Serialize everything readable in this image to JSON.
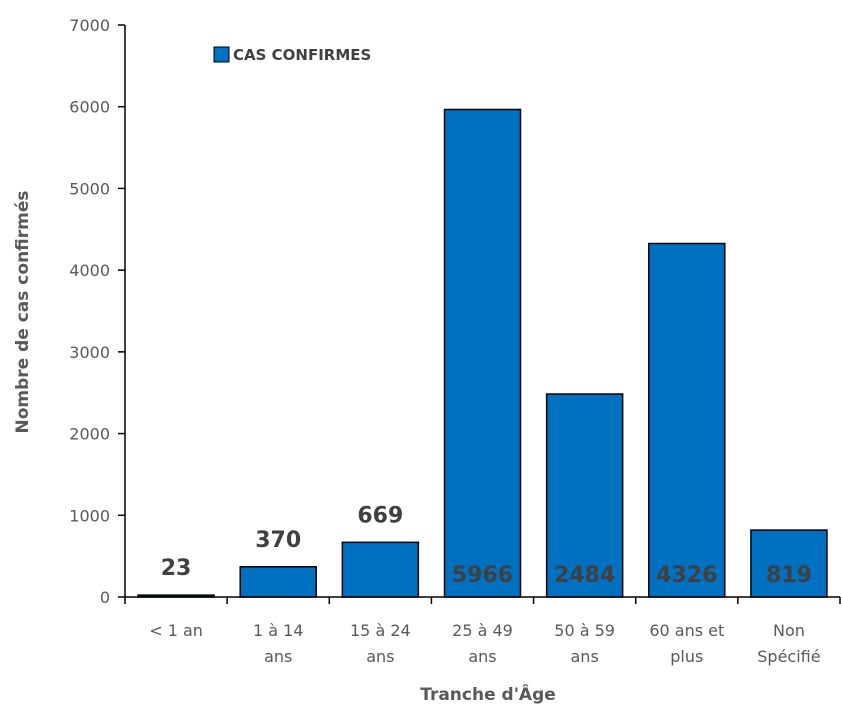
{
  "chart_data": {
    "type": "bar",
    "categories": [
      [
        "< 1 an"
      ],
      [
        "1 à 14",
        "ans"
      ],
      [
        "15 à 24",
        "ans"
      ],
      [
        "25 à 49",
        "ans"
      ],
      [
        "50 à 59",
        "ans"
      ],
      [
        "60 ans et",
        "plus"
      ],
      [
        "Non",
        "Spécifié"
      ]
    ],
    "series": [
      {
        "name": "CAS CONFIRMES",
        "values": [
          23,
          370,
          669,
          5966,
          2484,
          4326,
          819
        ],
        "color": "#0070C0"
      }
    ],
    "data_labels": [
      "23",
      "370",
      "669",
      "5966",
      "2484",
      "4326",
      "819"
    ],
    "xlabel": "Tranche d'Âge",
    "ylabel": "Nombre de cas confirmés",
    "ylim": [
      0,
      7000
    ],
    "yticks": [
      0,
      1000,
      2000,
      3000,
      4000,
      5000,
      6000,
      7000
    ],
    "grid": false,
    "legend_position": "top-left"
  }
}
